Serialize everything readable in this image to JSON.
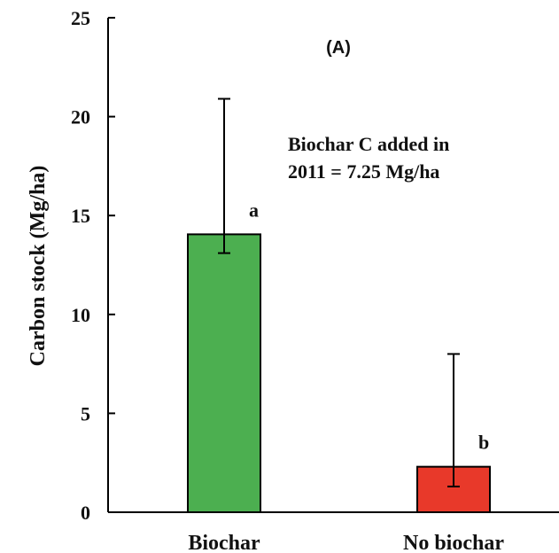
{
  "chart_data": {
    "type": "bar",
    "panel_label": "(A)",
    "ylabel": "Carbon stock (Mg/ha)",
    "xlabel": "",
    "ylim": [
      0,
      25
    ],
    "yticks": [
      0,
      5,
      10,
      15,
      20,
      25
    ],
    "categories": [
      "Biochar",
      "No biochar"
    ],
    "values": [
      14.05,
      2.3
    ],
    "error_upper": [
      20.9,
      8.0
    ],
    "error_lower": [
      13.1,
      1.3
    ],
    "colors": [
      "#4caf50",
      "#e8392a"
    ],
    "significance_letters": [
      "a",
      "b"
    ],
    "annotation": [
      "Biochar C added in",
      "2011 = 7.25 Mg/ha"
    ],
    "grid": false
  }
}
